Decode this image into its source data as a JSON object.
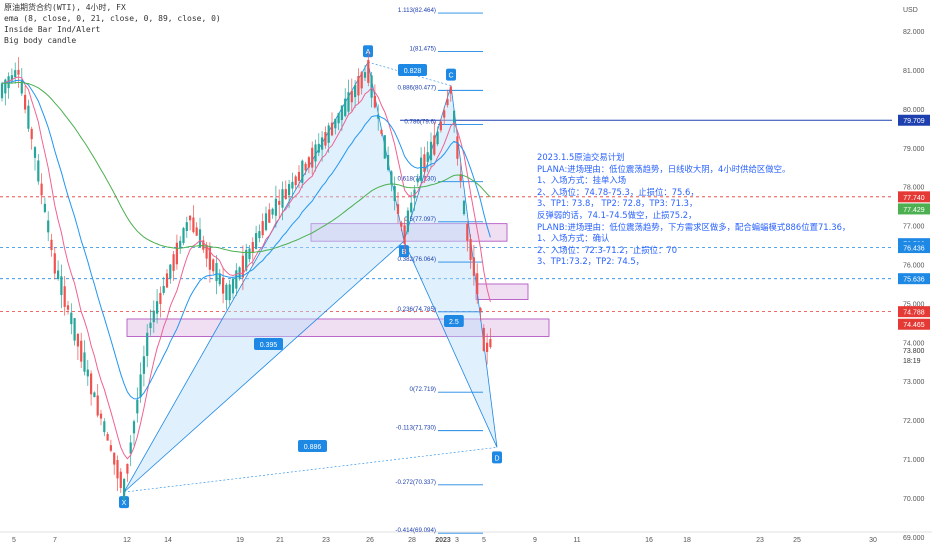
{
  "chart_data": {
    "type": "candlestick",
    "symbol_line": "原油期货合约(WTI), 4小时, FX",
    "indicators": [
      "ema (8, close, 0, 21, close, 0, 89, close, 0)",
      "Inside Bar Ind/Alert",
      "Big body candle"
    ],
    "currency": "USD",
    "y_ticks": [
      "82.000",
      "81.000",
      "80.000",
      "79.000",
      "78.000",
      "77.000",
      "76.000",
      "75.000",
      "74.000",
      "73.000",
      "72.000",
      "71.000",
      "70.000",
      "69.000"
    ],
    "x_ticks": [
      "5",
      "7",
      "12",
      "14",
      "19",
      "21",
      "23",
      "26",
      "28",
      "2023",
      "3",
      "5",
      "9",
      "11",
      "16",
      "18",
      "23",
      "25",
      "30"
    ],
    "current_price": "73.800",
    "countdown": "18:19",
    "price_badges": [
      {
        "text": "79.709",
        "color": "#1e40af"
      },
      {
        "text": "77.740",
        "color": "#e53935"
      },
      {
        "text": "77.429",
        "color": "#4caf50"
      },
      {
        "text": "76.536",
        "color": "#1e88e5"
      },
      {
        "text": "76.436",
        "color": "#1e88e5"
      },
      {
        "text": "75.636",
        "color": "#1e88e5"
      },
      {
        "text": "74.788",
        "color": "#e53935"
      },
      {
        "text": "74.465",
        "color": "#e53935"
      }
    ],
    "fib_levels": [
      {
        "ratio": "1.113",
        "price": "82.464"
      },
      {
        "ratio": "1",
        "price": "81.475"
      },
      {
        "ratio": "0.886",
        "price": "80.477"
      },
      {
        "ratio": "0.786",
        "price": "79.6"
      },
      {
        "ratio": "0.618",
        "price": "78.130"
      },
      {
        "ratio": "0.5",
        "price": "77.097"
      },
      {
        "ratio": "0.382",
        "price": "76.064"
      },
      {
        "ratio": "0.236",
        "price": "74.785"
      },
      {
        "ratio": "0",
        "price": "72.719"
      },
      {
        "ratio": "-0.113",
        "price": "71.730"
      },
      {
        "ratio": "-0.272",
        "price": "70.337"
      },
      {
        "ratio": "-0.414",
        "price": "69.094"
      }
    ],
    "pattern_points": [
      {
        "label": "X",
        "price": 70.15
      },
      {
        "label": "A",
        "price": 81.2
      },
      {
        "label": "B",
        "price": 76.6
      },
      {
        "label": "C",
        "price": 80.6
      },
      {
        "label": "D",
        "price": 71.3
      }
    ],
    "pattern_ratios": [
      "0.828",
      "0.395",
      "2.5",
      "0.886"
    ],
    "plan_text": [
      "2023.1.5原油交易计划",
      "PLANA:进场理由：低位震荡趋势，日线收大阴，4小时供给区做空。",
      "1、入场方式：挂单入场",
      "2、入场位：74.78-75.3，止损位：75.6，",
      "3、TP1: 73.8，  TP2: 72.8，TP3: 71.3，",
      "反弹弱的话，74.1-74.5做空，止损75.2，",
      "PLANB:进场理由：低位震荡趋势，下方需求区做多，配合蝙蝠模式886位置71.36，",
      "1、入场方式：确认",
      "2、入场位：72.3-71.2，止损位：70",
      "3、TP1:73.2，TP2: 74.5，"
    ],
    "colors": {
      "up": "#26a69a",
      "down": "#ef5350",
      "ema8": "#f06292",
      "ema21": "#2196f3",
      "ema89": "#4caf50",
      "pattern": "#1e88e5",
      "zone": "#ce93d8"
    }
  }
}
